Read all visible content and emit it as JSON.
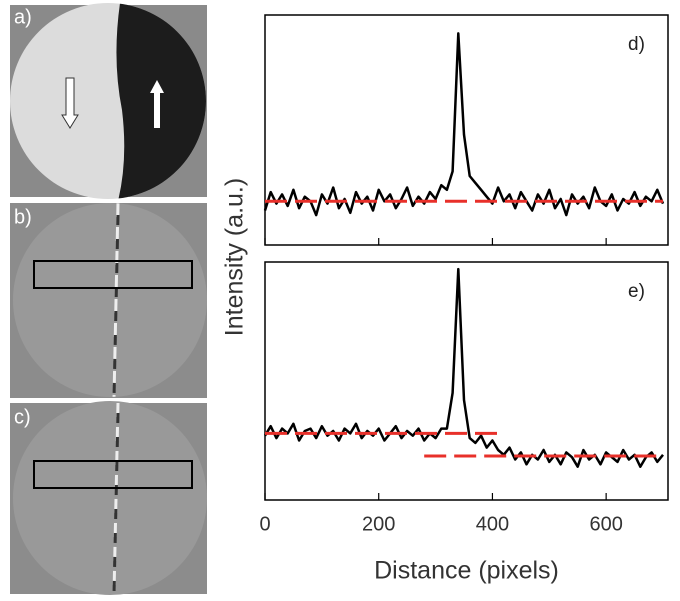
{
  "panels": [
    {
      "label": "a)"
    },
    {
      "label": "b)"
    },
    {
      "label": "c)"
    }
  ],
  "chart_data": [
    {
      "type": "line",
      "label": "d)",
      "ylabel": "Intensity (a.u.)",
      "xlim": [
        0,
        700
      ],
      "ylim": [
        0,
        10
      ],
      "x": [
        0,
        10,
        20,
        30,
        40,
        50,
        60,
        70,
        80,
        90,
        100,
        110,
        120,
        130,
        140,
        150,
        160,
        170,
        180,
        190,
        200,
        210,
        220,
        230,
        240,
        250,
        260,
        270,
        280,
        290,
        300,
        310,
        320,
        330,
        340,
        350,
        360,
        370,
        380,
        390,
        400,
        410,
        420,
        430,
        440,
        450,
        460,
        470,
        480,
        490,
        500,
        510,
        520,
        530,
        540,
        550,
        560,
        570,
        580,
        590,
        600,
        610,
        620,
        630,
        640,
        650,
        660,
        670,
        680,
        690,
        700
      ],
      "series": [
        {
          "color": "#000000",
          "values": [
            1.5,
            2.3,
            1.8,
            2.2,
            1.7,
            2.4,
            1.6,
            2.1,
            1.9,
            1.3,
            2.2,
            1.8,
            2.5,
            1.6,
            2.0,
            1.4,
            2.3,
            1.8,
            2.1,
            1.5,
            2.4,
            1.9,
            2.2,
            1.6,
            2.0,
            2.5,
            1.7,
            2.1,
            1.8,
            2.3,
            2.0,
            2.6,
            2.4,
            3.2,
            9.2,
            4.8,
            3.0,
            2.7,
            2.4,
            2.1,
            1.8,
            2.5,
            1.9,
            2.2,
            1.6,
            2.3,
            1.9,
            1.5,
            2.2,
            1.8,
            2.4,
            1.6,
            2.0,
            1.3,
            2.2,
            1.8,
            2.1,
            1.6,
            2.5,
            1.9,
            1.7,
            2.2,
            1.5,
            2.0,
            1.8,
            2.3,
            1.7,
            2.1,
            1.9,
            2.4,
            1.8
          ]
        },
        {
          "color": "#e8302a",
          "dashed": true,
          "x": [
            0,
            700
          ],
          "values": [
            1.9,
            1.9
          ]
        }
      ]
    },
    {
      "type": "line",
      "label": "e)",
      "xlabel": "Distance (pixels)",
      "xlim": [
        0,
        700
      ],
      "ylim": [
        0,
        10
      ],
      "xticks": [
        0,
        200,
        400,
        600
      ],
      "x": [
        0,
        10,
        20,
        30,
        40,
        50,
        60,
        70,
        80,
        90,
        100,
        110,
        120,
        130,
        140,
        150,
        160,
        170,
        180,
        190,
        200,
        210,
        220,
        230,
        240,
        250,
        260,
        270,
        280,
        290,
        300,
        310,
        320,
        330,
        340,
        350,
        360,
        370,
        380,
        390,
        400,
        410,
        420,
        430,
        440,
        450,
        460,
        470,
        480,
        490,
        500,
        510,
        520,
        530,
        540,
        550,
        560,
        570,
        580,
        590,
        600,
        610,
        620,
        630,
        640,
        650,
        660,
        670,
        680,
        690,
        700
      ],
      "series": [
        {
          "color": "#000000",
          "values": [
            2.7,
            3.1,
            2.6,
            3.0,
            2.8,
            3.2,
            2.5,
            2.9,
            3.0,
            2.6,
            3.1,
            2.7,
            2.9,
            2.5,
            3.0,
            2.8,
            3.2,
            2.6,
            2.9,
            2.7,
            3.0,
            2.5,
            2.8,
            3.1,
            2.6,
            2.9,
            2.7,
            3.0,
            2.5,
            2.8,
            2.6,
            3.0,
            3.0,
            4.5,
            9.7,
            4.2,
            2.6,
            2.4,
            2.7,
            2.2,
            2.5,
            2.1,
            1.9,
            2.2,
            1.7,
            2.0,
            1.5,
            1.9,
            1.7,
            2.1,
            1.6,
            1.9,
            1.5,
            2.0,
            1.8,
            1.4,
            2.1,
            1.7,
            1.9,
            1.5,
            2.0,
            1.8,
            1.6,
            2.1,
            1.7,
            1.9,
            1.4,
            1.8,
            2.0,
            1.6,
            1.9
          ]
        },
        {
          "color": "#e8302a",
          "dashed": true,
          "x": [
            0,
            420
          ],
          "values": [
            2.8,
            2.8
          ]
        },
        {
          "color": "#e8302a",
          "dashed": true,
          "x": [
            280,
            700
          ],
          "values": [
            1.85,
            1.85
          ]
        }
      ]
    }
  ]
}
